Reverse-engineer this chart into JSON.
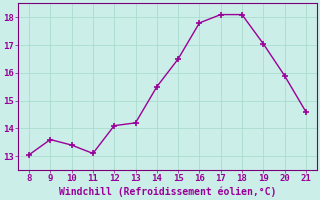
{
  "x": [
    8,
    9,
    10,
    11,
    12,
    13,
    14,
    15,
    16,
    17,
    18,
    19,
    20,
    21
  ],
  "y": [
    13.05,
    13.6,
    13.4,
    13.1,
    14.1,
    14.2,
    15.5,
    16.5,
    17.8,
    18.1,
    18.1,
    17.05,
    15.9,
    14.6
  ],
  "line_color": "#990099",
  "marker": "+",
  "marker_size": 4,
  "bg_color": "#cceee8",
  "grid_color": "#aaddcc",
  "xlabel": "Windchill (Refroidissement éolien,°C)",
  "xlabel_color": "#990099",
  "tick_color": "#990099",
  "ylim": [
    12.5,
    18.5
  ],
  "xlim": [
    7.5,
    21.5
  ],
  "yticks": [
    13,
    14,
    15,
    16,
    17,
    18
  ],
  "xticks": [
    8,
    9,
    10,
    11,
    12,
    13,
    14,
    15,
    16,
    17,
    18,
    19,
    20,
    21
  ],
  "spine_color": "#7a007a",
  "line_width": 1.0,
  "tick_labelsize": 6.5,
  "xlabel_fontsize": 7.0
}
